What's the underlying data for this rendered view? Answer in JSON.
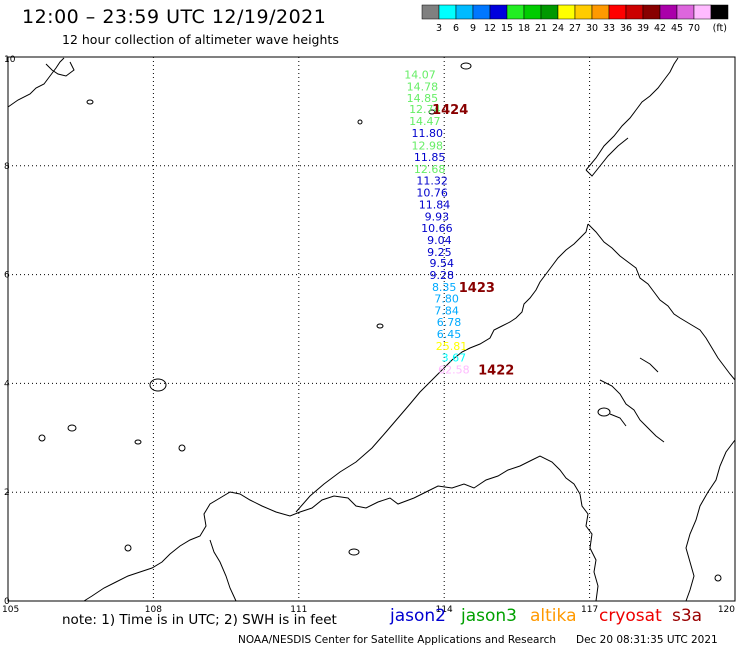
{
  "header": {
    "title": "12:00 – 23:59 UTC 12/19/2021",
    "subtitle": "12 hour collection of altimeter wave heights"
  },
  "legend": {
    "unit": "(ft)",
    "bins": [
      {
        "label": "",
        "color": "#808080"
      },
      {
        "label": "3",
        "color": "#00ffff"
      },
      {
        "label": "6",
        "color": "#00bbff"
      },
      {
        "label": "9",
        "color": "#0077ff"
      },
      {
        "label": "12",
        "color": "#0000dd"
      },
      {
        "label": "15",
        "color": "#22ee22"
      },
      {
        "label": "18",
        "color": "#00cc00"
      },
      {
        "label": "21",
        "color": "#009900"
      },
      {
        "label": "24",
        "color": "#ffff00"
      },
      {
        "label": "27",
        "color": "#ffcc00"
      },
      {
        "label": "30",
        "color": "#ff9900"
      },
      {
        "label": "33",
        "color": "#ff0000"
      },
      {
        "label": "36",
        "color": "#cc0000"
      },
      {
        "label": "39",
        "color": "#880000"
      },
      {
        "label": "42",
        "color": "#aa00aa"
      },
      {
        "label": "45",
        "color": "#dd66dd"
      },
      {
        "label": "70",
        "color": "#ffbbff"
      },
      {
        "label": "",
        "color": "#000000"
      }
    ]
  },
  "axes": {
    "x_ticks": [
      "105",
      "108",
      "111",
      "114",
      "117",
      "120"
    ],
    "y_ticks": [
      "0",
      "2",
      "4",
      "6",
      "8",
      "10"
    ],
    "lon_range": [
      105,
      120
    ],
    "lat_range": [
      0,
      10
    ]
  },
  "chart_data": {
    "type": "scatter",
    "title": "12:00 – 23:59 UTC 12/19/2021",
    "subtitle": "12 hour collection of altimeter wave heights",
    "xlim": [
      105,
      120
    ],
    "ylim": [
      0,
      10
    ],
    "unit": "ft",
    "series": [
      {
        "name": "track",
        "points": [
          {
            "lon": 113.5,
            "lat": 9.68,
            "swh": "14.07",
            "color": "#66ee66"
          },
          {
            "lon": 113.55,
            "lat": 9.46,
            "swh": "14.78",
            "color": "#66ee66"
          },
          {
            "lon": 113.55,
            "lat": 9.25,
            "swh": "14.85",
            "color": "#66ee66"
          },
          {
            "lon": 113.6,
            "lat": 9.04,
            "swh": "12.74",
            "color": "#66ee66"
          },
          {
            "lon": 113.6,
            "lat": 8.82,
            "swh": "14.47",
            "color": "#66ee66"
          },
          {
            "lon": 113.65,
            "lat": 8.6,
            "swh": "11.80",
            "color": "#0000cc"
          },
          {
            "lon": 113.65,
            "lat": 8.37,
            "swh": "12.98",
            "color": "#66ee66"
          },
          {
            "lon": 113.7,
            "lat": 8.16,
            "swh": "11.85",
            "color": "#0000cc"
          },
          {
            "lon": 113.7,
            "lat": 7.94,
            "swh": "12.68",
            "color": "#66ee66"
          },
          {
            "lon": 113.75,
            "lat": 7.73,
            "swh": "11.32",
            "color": "#0000cc"
          },
          {
            "lon": 113.75,
            "lat": 7.51,
            "swh": "10.76",
            "color": "#0000cc"
          },
          {
            "lon": 113.8,
            "lat": 7.29,
            "swh": "11.84",
            "color": "#0000cc"
          },
          {
            "lon": 113.85,
            "lat": 7.07,
            "swh": "9.93",
            "color": "#0000cc"
          },
          {
            "lon": 113.85,
            "lat": 6.86,
            "swh": "10.66",
            "color": "#0000cc"
          },
          {
            "lon": 113.9,
            "lat": 6.64,
            "swh": "9.04",
            "color": "#0000cc"
          },
          {
            "lon": 113.9,
            "lat": 6.42,
            "swh": "9.25",
            "color": "#0000cc"
          },
          {
            "lon": 113.95,
            "lat": 6.21,
            "swh": "9.54",
            "color": "#0000cc"
          },
          {
            "lon": 113.95,
            "lat": 5.99,
            "swh": "9.28",
            "color": "#0000cc"
          },
          {
            "lon": 114.0,
            "lat": 5.77,
            "swh": "8.35",
            "color": "#00aaff"
          },
          {
            "lon": 114.05,
            "lat": 5.56,
            "swh": "7.80",
            "color": "#00aaff"
          },
          {
            "lon": 114.05,
            "lat": 5.34,
            "swh": "7.84",
            "color": "#00aaff"
          },
          {
            "lon": 114.1,
            "lat": 5.13,
            "swh": "6.78",
            "color": "#00aaff"
          },
          {
            "lon": 114.1,
            "lat": 4.91,
            "swh": "6.45",
            "color": "#00aaff"
          },
          {
            "lon": 114.15,
            "lat": 4.69,
            "swh": "25.81",
            "color": "#ffff00"
          },
          {
            "lon": 114.2,
            "lat": 4.48,
            "swh": "3.67",
            "color": "#00ffff"
          },
          {
            "lon": 114.2,
            "lat": 4.26,
            "swh": "62.58",
            "color": "#ffbbff"
          }
        ]
      }
    ],
    "time_labels": [
      {
        "text": "1424",
        "lon": 113.75,
        "lat": 9.04
      },
      {
        "text": "1423",
        "lon": 114.3,
        "lat": 5.77
      },
      {
        "text": "1422",
        "lon": 114.7,
        "lat": 4.26
      }
    ]
  },
  "footer": {
    "note": "note:  1) Time is in UTC;  2) SWH is in feet",
    "satellites": [
      "jason2",
      "jason3",
      "altika",
      "cryosat",
      "s3a"
    ],
    "credit": "NOAA/NESDIS Center for Satellite Applications and Research",
    "timestamp": "Dec 20 08:31:35 UTC 2021"
  }
}
